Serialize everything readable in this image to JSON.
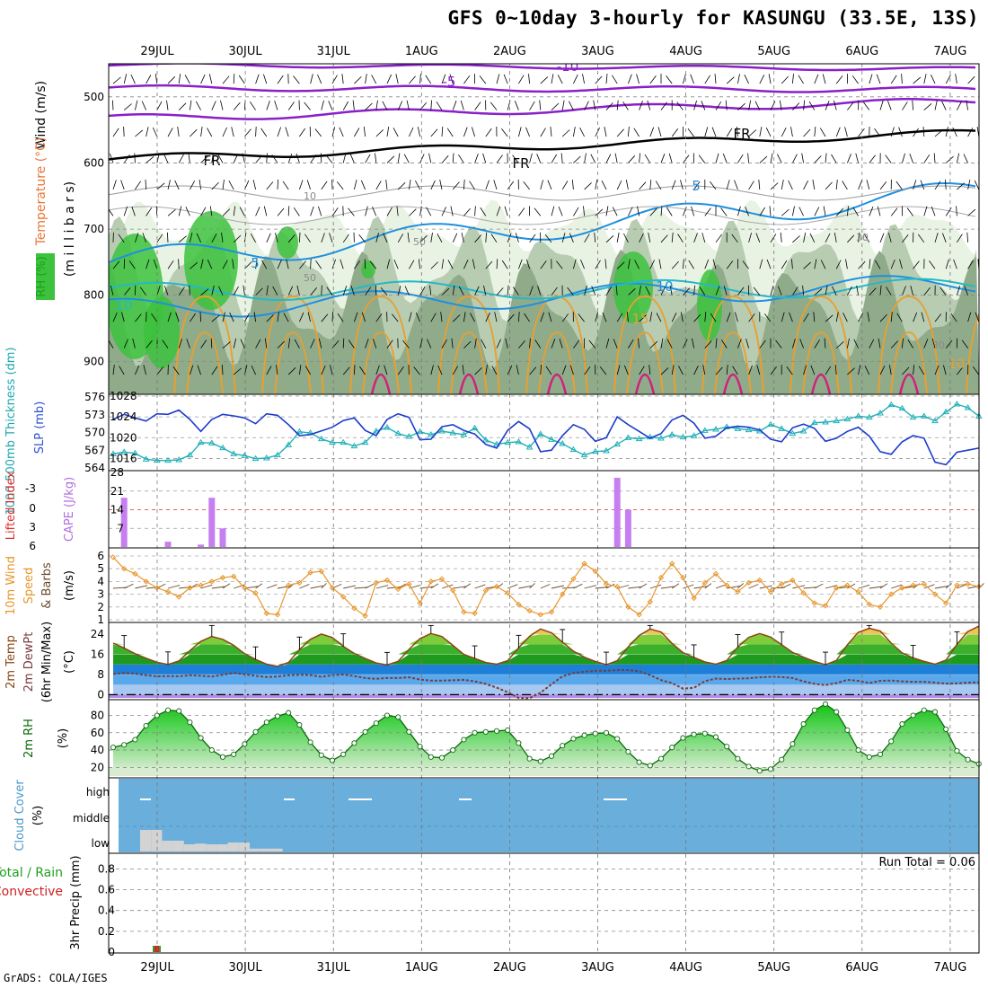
{
  "title": "GFS 0~10day 3-hourly for KASUNGU (33.5E, 13S)",
  "credit": "GrADS: COLA/IGES",
  "date_ticks": [
    "29JUL",
    "30JUL",
    "31JUL",
    "1AUG",
    "2AUG",
    "3AUG",
    "4AUG",
    "5AUG",
    "6AUG",
    "7AUG"
  ],
  "chart_data": [
    {
      "panel": "upper-air",
      "type": "heatmap",
      "ylabel_parts": [
        {
          "text": "Wind (m/s)",
          "color": "#000000"
        },
        {
          "text": "Temperature (°C)",
          "color": "#e8773a"
        },
        {
          "text": "(m i l l i b a r s)",
          "color": "#000000"
        },
        {
          "text": "RH (%)",
          "color": "#1fa01f"
        }
      ],
      "y_ticks": [
        "500",
        "600",
        "700",
        "800",
        "900"
      ],
      "y_values": [
        500,
        600,
        700,
        800,
        900
      ],
      "ylim": [
        450,
        1000
      ],
      "contour_labels": [
        "-10",
        "-5",
        "FR",
        "FR",
        "FR",
        "5",
        "5",
        "10",
        "10",
        "15",
        "10",
        "50",
        "50",
        "30",
        "30",
        "10"
      ],
      "colors": {
        "freezing": "#000000",
        "minus": "#8a20c8",
        "cool": "#1e90e0",
        "warm": "#e8a030",
        "hot": "#d0207a",
        "rh_light": "#e9f3e4",
        "rh_mid": "#b8ccb2",
        "rh_dark": "#8fab8a",
        "rh_green": "#3cc23c"
      }
    },
    {
      "panel": "thickness-slp",
      "type": "line",
      "ylabel_left": "1000-500mb Thickness (dm)",
      "ylabel_right": "SLP (mb)",
      "left_ticks": [
        "576",
        "573",
        "570",
        "567",
        "564"
      ],
      "right_ticks": [
        "1028",
        "1024",
        "1020",
        "1016"
      ],
      "ylim_thickness": [
        564,
        576
      ],
      "ylim_slp": [
        1014,
        1028
      ],
      "series": [
        {
          "name": "SLP (mb)",
          "color": "#1c3ccc",
          "values": [
            1023.5,
            1024.5,
            1023.8,
            1023.2,
            1024.6,
            1024.5,
            1025.3,
            1023.5,
            1021.2,
            1023.5,
            1024.5,
            1024.2,
            1023.8,
            1022.7,
            1024.6,
            1024.3,
            1022.5,
            1020.4,
            1020.6,
            1021.3,
            1022.0,
            1023.3,
            1023.8,
            1021.4,
            1020.4,
            1023.5,
            1024.6,
            1023.9,
            1019.6,
            1019.7,
            1022.1,
            1022.5,
            1021.4,
            1020.7,
            1018.7,
            1018.0,
            1021.4,
            1023.1,
            1021.7,
            1017.3,
            1017.6,
            1020.4,
            1022.5,
            1021.6,
            1019.3,
            1020.0,
            1024.0,
            1022.5,
            1021.2,
            1019.9,
            1020.8,
            1023.4,
            1024.3,
            1022.8,
            1019.9,
            1020.3,
            1021.9,
            1022.2,
            1022.0,
            1021.5,
            1019.7,
            1019.2,
            1021.9,
            1022.6,
            1021.8,
            1019.3,
            1019.9,
            1021.2,
            1022.0,
            1020.3,
            1017.3,
            1016.8,
            1019.2,
            1020.4,
            1019.9,
            1015.3,
            1014.8,
            1017.2,
            1017.6,
            1018.0
          ]
        },
        {
          "name": "1000-500mb Thickness (dm)",
          "color": "#20b0b8",
          "values": [
            566.5,
            566.8,
            566.6,
            565.6,
            565.4,
            565.4,
            565.5,
            566.3,
            568.4,
            568.3,
            567.5,
            566.5,
            566.2,
            565.7,
            565.8,
            566.3,
            568.0,
            570.2,
            570.0,
            569.0,
            568.4,
            568.4,
            567.8,
            568.4,
            570.3,
            570.9,
            569.9,
            569.4,
            570.2,
            569.7,
            570.3,
            570.0,
            569.7,
            570.8,
            568.8,
            568.1,
            568.4,
            568.5,
            567.6,
            569.8,
            568.9,
            568.2,
            567.2,
            566.3,
            566.9,
            567.0,
            568.1,
            569.2,
            569.0,
            569.3,
            569.1,
            569.7,
            569.3,
            569.5,
            570.4,
            570.6,
            571.0,
            570.7,
            570.5,
            570.3,
            571.4,
            570.7,
            569.9,
            570.3,
            571.7,
            571.8,
            572.0,
            572.3,
            572.8,
            572.6,
            573.3,
            574.7,
            574.1,
            572.6,
            572.8,
            572.0,
            573.5,
            574.8,
            574.2,
            572.8
          ]
        }
      ]
    },
    {
      "panel": "cape-li",
      "type": "bar",
      "ylabel_left": "Lifted Index",
      "ylabel_right": "CAPE (J/kg)",
      "left_ticks": [
        "-3",
        "0",
        "3",
        "6"
      ],
      "right_ticks": [
        "28",
        "21",
        "14",
        "7"
      ],
      "ylim": [
        0,
        28
      ],
      "series": [
        {
          "name": "CAPE (J/kg)",
          "color": "#c67ff0",
          "values": [
            0,
            18.5,
            0,
            0,
            0,
            2,
            0,
            0,
            0.9,
            18.5,
            7,
            0,
            0,
            0,
            0,
            0,
            0,
            0,
            0,
            0,
            0,
            0,
            0,
            0,
            0,
            0,
            0,
            0,
            0,
            0,
            0,
            0,
            0,
            0,
            0,
            0,
            0,
            0,
            0,
            0,
            0,
            0,
            0,
            0,
            0,
            0,
            26,
            14,
            0,
            0,
            0,
            0,
            0,
            0,
            0,
            0,
            0,
            0,
            0,
            0,
            0,
            0,
            0,
            0,
            0,
            0,
            0,
            0,
            0,
            0,
            0,
            0,
            0,
            0,
            0,
            0,
            0,
            0,
            0,
            0
          ]
        }
      ]
    },
    {
      "panel": "10m-wind",
      "type": "line",
      "ylabel": "10m Wind Speed & Barbs (m/s)",
      "y_ticks": [
        "6",
        "5",
        "4",
        "3",
        "2",
        "1"
      ],
      "ylim": [
        0.8,
        6.4
      ],
      "series": [
        {
          "name": "10m Wind Speed",
          "color": "#e8962c",
          "values": [
            5.9,
            5.0,
            4.6,
            4.0,
            3.5,
            3.2,
            2.8,
            3.5,
            3.7,
            4.0,
            4.3,
            4.4,
            3.5,
            3.1,
            1.5,
            1.4,
            3.7,
            3.9,
            4.7,
            4.8,
            3.5,
            2.8,
            1.9,
            1.3,
            3.9,
            4.1,
            3.4,
            3.8,
            2.3,
            4.0,
            4.2,
            3.3,
            1.6,
            1.5,
            3.3,
            3.6,
            3.1,
            2.2,
            1.7,
            1.4,
            1.6,
            3.0,
            4.2,
            5.4,
            4.8,
            3.8,
            3.6,
            2.0,
            1.4,
            2.4,
            4.3,
            5.4,
            4.3,
            2.7,
            3.9,
            4.6,
            3.7,
            3.2,
            3.9,
            4.1,
            3.2,
            3.8,
            4.1,
            3.1,
            2.3,
            2.1,
            3.5,
            3.7,
            3.2,
            2.2,
            2.0,
            3.0,
            3.5,
            3.7,
            3.8,
            3.0,
            2.3,
            3.7,
            3.8,
            3.6
          ]
        }
      ]
    },
    {
      "panel": "2m-temp",
      "type": "area",
      "ylabel": "2m Temp 2m DewPt (6hr Min/Max) (°C)",
      "y_ticks": [
        "24",
        "16",
        "8",
        "0"
      ],
      "ylim": [
        -2,
        28
      ],
      "series": [
        {
          "name": "2m Temp",
          "color": "#8b4513",
          "values": [
            20.5,
            18.5,
            16.3,
            14.5,
            12.9,
            12.0,
            13.4,
            17.5,
            21.2,
            23.1,
            22.0,
            19.6,
            16.3,
            14.0,
            12.1,
            11.3,
            12.8,
            17.9,
            22.0,
            24.1,
            22.7,
            19.2,
            16.4,
            14.4,
            12.6,
            11.8,
            13.2,
            18.0,
            22.3,
            24.3,
            23.1,
            19.6,
            16.0,
            14.4,
            12.8,
            12.1,
            13.5,
            18.6,
            23.2,
            26.1,
            24.6,
            20.9,
            17.3,
            14.9,
            13.2,
            11.9,
            13.5,
            19.0,
            23.5,
            26.1,
            24.9,
            20.4,
            16.7,
            14.8,
            13.0,
            12.1,
            13.6,
            18.9,
            22.8,
            24.3,
            22.9,
            19.9,
            16.8,
            14.9,
            13.2,
            11.9,
            13.6,
            19.8,
            24.8,
            26.4,
            25.3,
            20.5,
            16.6,
            14.6,
            13.2,
            12.1,
            13.7,
            20.0,
            25.1,
            27.2
          ]
        },
        {
          "name": "2m DewPt",
          "color": "#7a3c3c",
          "values": [
            8.2,
            8.6,
            8.4,
            7.7,
            7.3,
            7.4,
            7.3,
            7.7,
            7.5,
            7.2,
            7.9,
            8.6,
            8.1,
            7.5,
            7.0,
            7.2,
            7.7,
            7.9,
            7.8,
            7.1,
            7.7,
            8.0,
            7.4,
            6.6,
            6.3,
            6.6,
            6.6,
            6.9,
            6.0,
            5.6,
            5.6,
            5.7,
            5.9,
            5.3,
            4.3,
            2.8,
            1.0,
            -1.3,
            -1.4,
            0.8,
            4.1,
            7.3,
            8.6,
            9.1,
            9.5,
            9.5,
            9.8,
            9.8,
            9.3,
            7.8,
            5.8,
            4.6,
            2.4,
            2.7,
            5.4,
            6.4,
            6.2,
            6.4,
            6.5,
            6.9,
            7.1,
            7.0,
            6.6,
            5.3,
            4.3,
            3.8,
            4.6,
            5.9,
            5.5,
            4.6,
            5.5,
            5.6,
            5.3,
            5.1,
            5.1,
            4.8,
            4.4,
            4.5,
            4.8,
            4.9
          ]
        }
      ],
      "colors": {
        "band_warm": "#e8962c",
        "band_hot": "#f0c35a",
        "band_green1": "#7ecc3a",
        "band_green2": "#3cb02c",
        "band_green3": "#1f9a1f",
        "band_blue1": "#1e7fd8",
        "band_blue2": "#5aa8ec",
        "band_freeze": "#a7c8f0",
        "band_purple": "#b28ae8"
      }
    },
    {
      "panel": "2m-rh",
      "type": "area",
      "ylabel": "2m RH (%)",
      "y_ticks": [
        "80",
        "60",
        "40",
        "20"
      ],
      "ylim": [
        10,
        95
      ],
      "series": [
        {
          "name": "2m RH",
          "color": "#0a6a0a",
          "values": [
            43,
            46,
            52,
            68,
            80,
            86,
            85,
            72,
            54,
            40,
            32,
            35,
            47,
            61,
            72,
            79,
            83,
            69,
            49,
            34,
            28,
            35,
            48,
            61,
            71,
            80,
            78,
            61,
            44,
            32,
            31,
            40,
            52,
            60,
            61,
            62,
            63,
            48,
            30,
            27,
            33,
            45,
            53,
            57,
            59,
            60,
            53,
            38,
            26,
            22,
            30,
            43,
            54,
            58,
            59,
            55,
            44,
            30,
            21,
            16,
            18,
            29,
            47,
            70,
            86,
            93,
            84,
            63,
            40,
            32,
            35,
            50,
            70,
            80,
            86,
            84,
            64,
            39,
            29,
            24
          ]
        }
      ],
      "colors": {
        "bright": "#13c413",
        "mid": "#68d868",
        "pale": "#d9ecd2"
      }
    },
    {
      "panel": "cloud-cover",
      "type": "bar",
      "ylabel": "Cloud Cover (%)",
      "y_ticks": [
        "high",
        "middle",
        "low"
      ],
      "colors": {
        "background": "#6aaedc",
        "bar": "#d3d3d3",
        "high_dash": "#ffffff"
      },
      "series": [
        {
          "name": "low",
          "values": [
            60,
            60,
            30,
            30,
            20,
            22,
            20,
            20,
            25,
            25,
            8,
            8,
            8,
            0,
            0,
            0,
            0,
            0,
            0,
            0,
            0,
            0,
            0,
            0,
            0,
            0,
            0,
            0,
            0,
            0,
            0,
            0,
            0,
            0,
            0,
            0,
            0,
            0,
            0,
            0,
            0,
            0,
            0,
            0,
            0,
            0,
            0,
            0,
            0,
            0,
            0,
            0,
            0,
            0,
            0,
            0,
            0,
            0,
            0,
            0,
            0,
            0,
            0,
            0,
            0,
            0,
            0,
            0,
            0,
            0,
            0,
            0,
            0,
            0,
            0,
            0,
            0,
            0,
            0,
            0
          ]
        }
      ]
    },
    {
      "panel": "precip",
      "type": "bar",
      "ylabel": "3hr Precip (mm)",
      "legend_parts": [
        {
          "text": "Total / Rain",
          "color": "#21a021"
        },
        {
          "text": "Convective",
          "color": "#d02020"
        }
      ],
      "annotation": "Run Total = 0.06",
      "y_ticks": [
        "0.8",
        "0.6",
        "0.4",
        "0.2",
        "0"
      ],
      "y_values": [
        0.8,
        0.6,
        0.4,
        0.2,
        0
      ],
      "ylim": [
        0,
        0.95
      ],
      "series": [
        {
          "name": "Total / Rain",
          "color": "#2aa02a",
          "values": [
            0.06
          ]
        },
        {
          "name": "Convective",
          "color": "#e02020",
          "values": [
            0.06
          ]
        }
      ]
    }
  ]
}
